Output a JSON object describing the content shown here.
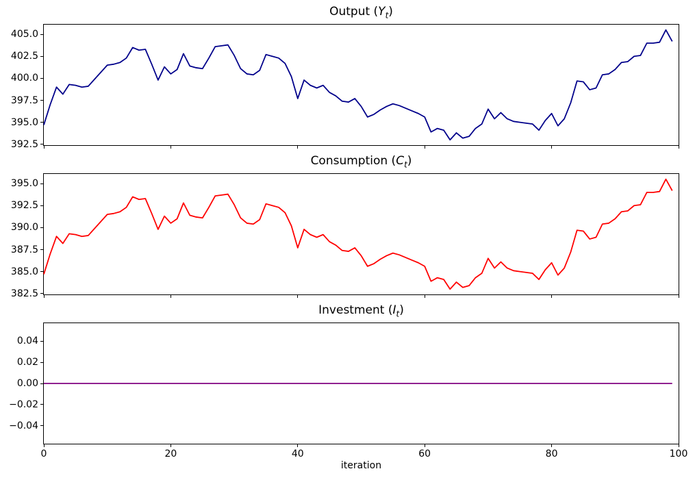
{
  "figure": {
    "background": "#ffffff",
    "spine_color": "#000000",
    "n_subplots": 3
  },
  "chart_data": [
    {
      "type": "line",
      "title_parts": {
        "pre": "Output (",
        "var": "Y",
        "sub": "t",
        "post": ")"
      },
      "xlabel": "",
      "xlim": [
        0,
        100
      ],
      "ylim": [
        392.4,
        406.1
      ],
      "grid": false,
      "legend": null,
      "show_xticklabels": false,
      "xticks": {
        "values": [
          0,
          20,
          40,
          60,
          80,
          100
        ],
        "labels": [
          "0",
          "20",
          "40",
          "60",
          "80",
          "100"
        ]
      },
      "yticks": {
        "values": [
          392.5,
          395.0,
          397.5,
          400.0,
          402.5,
          405.0
        ],
        "labels": [
          "392.5",
          "395.0",
          "397.5",
          "400.0",
          "402.5",
          "405.0"
        ]
      },
      "series": [
        {
          "name": "output",
          "color": "#00008B",
          "x_start": 0,
          "values": [
            394.7,
            397.0,
            399.0,
            398.2,
            399.3,
            399.2,
            399.0,
            399.1,
            399.9,
            400.7,
            401.5,
            401.6,
            401.8,
            402.3,
            403.5,
            403.2,
            403.3,
            401.6,
            399.8,
            401.3,
            400.5,
            401.0,
            402.8,
            401.4,
            401.2,
            401.1,
            402.3,
            403.6,
            403.7,
            403.8,
            402.6,
            401.1,
            400.5,
            400.4,
            400.9,
            402.7,
            402.5,
            402.3,
            401.7,
            400.2,
            397.7,
            399.8,
            399.2,
            398.9,
            399.2,
            398.4,
            398.0,
            397.4,
            397.3,
            397.7,
            396.8,
            395.6,
            395.9,
            396.4,
            396.8,
            397.1,
            396.9,
            396.6,
            396.3,
            396.0,
            395.6,
            393.9,
            394.3,
            394.1,
            393.0,
            393.8,
            393.2,
            393.4,
            394.3,
            394.8,
            396.5,
            395.4,
            396.1,
            395.4,
            395.1,
            395.0,
            394.9,
            394.8,
            394.1,
            395.2,
            396.0,
            394.6,
            395.4,
            397.2,
            399.7,
            399.6,
            398.7,
            398.9,
            400.4,
            400.5,
            401.0,
            401.8,
            401.9,
            402.5,
            402.6,
            404.0,
            404.0,
            404.1,
            405.5,
            404.2
          ]
        }
      ]
    },
    {
      "type": "line",
      "title_parts": {
        "pre": "Consumption (",
        "var": "C",
        "sub": "t",
        "post": ")"
      },
      "xlabel": "",
      "xlim": [
        0,
        100
      ],
      "ylim": [
        382.4,
        396.1
      ],
      "grid": false,
      "legend": null,
      "show_xticklabels": false,
      "xticks": {
        "values": [
          0,
          20,
          40,
          60,
          80,
          100
        ],
        "labels": [
          "0",
          "20",
          "40",
          "60",
          "80",
          "100"
        ]
      },
      "yticks": {
        "values": [
          382.5,
          385.0,
          387.5,
          390.0,
          392.5,
          395.0
        ],
        "labels": [
          "382.5",
          "385.0",
          "387.5",
          "390.0",
          "392.5",
          "395.0"
        ]
      },
      "series": [
        {
          "name": "consumption",
          "color": "#FF0000",
          "x_start": 0,
          "values": [
            384.7,
            387.0,
            389.0,
            388.2,
            389.3,
            389.2,
            389.0,
            389.1,
            389.9,
            390.7,
            391.5,
            391.6,
            391.8,
            392.3,
            393.5,
            393.2,
            393.3,
            391.6,
            389.8,
            391.3,
            390.5,
            391.0,
            392.8,
            391.4,
            391.2,
            391.1,
            392.3,
            393.6,
            393.7,
            393.8,
            392.6,
            391.1,
            390.5,
            390.4,
            390.9,
            392.7,
            392.5,
            392.3,
            391.7,
            390.2,
            387.7,
            389.8,
            389.2,
            388.9,
            389.2,
            388.4,
            388.0,
            387.4,
            387.3,
            387.7,
            386.8,
            385.6,
            385.9,
            386.4,
            386.8,
            387.1,
            386.9,
            386.6,
            386.3,
            386.0,
            385.6,
            383.9,
            384.3,
            384.1,
            383.0,
            383.8,
            383.2,
            383.4,
            384.3,
            384.8,
            386.5,
            385.4,
            386.1,
            385.4,
            385.1,
            385.0,
            384.9,
            384.8,
            384.1,
            385.2,
            386.0,
            384.6,
            385.4,
            387.2,
            389.7,
            389.6,
            388.7,
            388.9,
            390.4,
            390.5,
            391.0,
            391.8,
            391.9,
            392.5,
            392.6,
            394.0,
            394.0,
            394.1,
            395.5,
            394.2
          ]
        }
      ]
    },
    {
      "type": "line",
      "title_parts": {
        "pre": "Investment (",
        "var": "I",
        "sub": "t",
        "post": ")"
      },
      "xlabel": "iteration",
      "xlim": [
        0,
        100
      ],
      "ylim": [
        -0.057,
        0.057
      ],
      "grid": false,
      "legend": null,
      "show_xticklabels": true,
      "xticks": {
        "values": [
          0,
          20,
          40,
          60,
          80,
          100
        ],
        "labels": [
          "0",
          "20",
          "40",
          "60",
          "80",
          "100"
        ]
      },
      "yticks": {
        "values": [
          -0.04,
          -0.02,
          0.0,
          0.02,
          0.04
        ],
        "labels": [
          "−0.04",
          "−0.02",
          "0.00",
          "0.02",
          "0.04"
        ]
      },
      "series": [
        {
          "name": "investment",
          "color": "#800080",
          "x_start": 0,
          "constant_value": 0.0,
          "count": 100
        }
      ]
    }
  ]
}
